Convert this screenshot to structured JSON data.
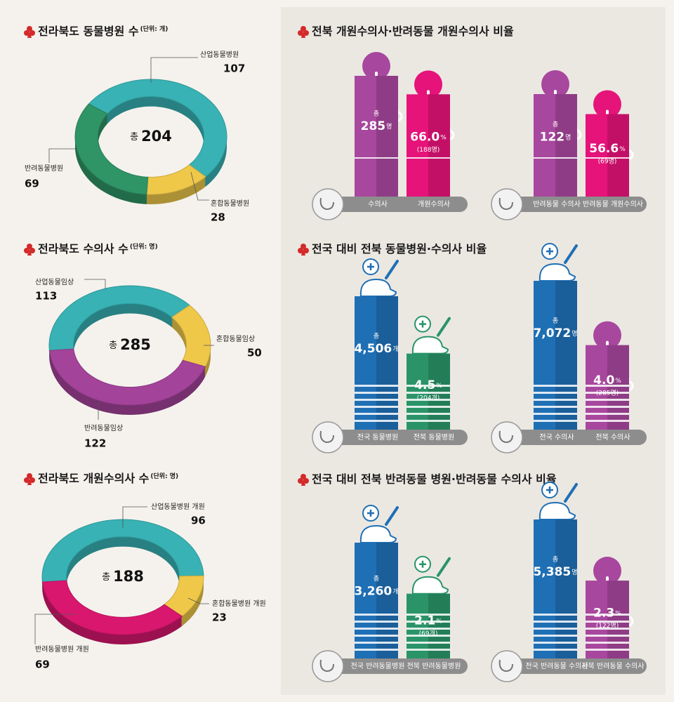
{
  "chart_data": [
    {
      "type": "pie",
      "title": "전라북도 동물병원 수",
      "unit": "(단위: 개)",
      "total_prefix": "총",
      "total": 204,
      "categories": [
        "산업동물병원",
        "혼합동물병원",
        "반려동물병원"
      ],
      "values": [
        107,
        28,
        69
      ],
      "colors": [
        "#38b2b4",
        "#efc84a",
        "#2f9466"
      ]
    },
    {
      "type": "pie",
      "title": "전라북도 수의사 수",
      "unit": "(단위: 명)",
      "total_prefix": "총",
      "total": 285,
      "categories": [
        "산업동물임상",
        "혼합동물임상",
        "반려동물임상"
      ],
      "values": [
        113,
        50,
        122
      ],
      "colors": [
        "#38b2b4",
        "#efc84a",
        "#a4439a"
      ]
    },
    {
      "type": "pie",
      "title": "전라북도 개원수의사 수",
      "unit": "(단위: 명)",
      "total_prefix": "총",
      "total": 188,
      "categories": [
        "산업동물병원 개원",
        "혼합동물병원 개원",
        "반려동물병원 개원"
      ],
      "values": [
        96,
        23,
        69
      ],
      "colors": [
        "#38b2b4",
        "#efc84a",
        "#d9176f"
      ]
    },
    {
      "type": "bar",
      "title": "전북 개원수의사·반려동물 개원수의사 비율",
      "groups": [
        {
          "bars": [
            {
              "label": "수의사",
              "prefix": "총",
              "value": 285,
              "unit": "명",
              "color": "#a8479e"
            },
            {
              "label": "개원수의사",
              "value": 66.0,
              "value_label": "66.0",
              "unit": "%",
              "count": 188,
              "count_label": "(188명)",
              "color": "#e5137a"
            }
          ]
        },
        {
          "bars": [
            {
              "label": "반려동물 수의사",
              "prefix": "총",
              "value": 122,
              "unit": "명",
              "color": "#a8479e"
            },
            {
              "label": "반려동물 개원수의사",
              "value": 56.6,
              "unit": "%",
              "count": 69,
              "count_label": "(69명)",
              "color": "#e5137a"
            }
          ]
        }
      ]
    },
    {
      "type": "bar",
      "title": "전국 대비 전북 동물병원·수의사 비율",
      "groups": [
        {
          "bars": [
            {
              "label": "전국 동물병원",
              "prefix": "총",
              "value": 4506,
              "value_label": "4,506",
              "unit": "개",
              "color": "#1f6fb5"
            },
            {
              "label": "전북 동물병원",
              "value": 4.5,
              "unit": "%",
              "count": 204,
              "count_label": "(204개)",
              "color": "#2a9468"
            }
          ]
        },
        {
          "bars": [
            {
              "label": "전국 수의사",
              "prefix": "총",
              "value": 7072,
              "value_label": "7,072",
              "unit": "명",
              "color": "#1f6fb5"
            },
            {
              "label": "전북 수의사",
              "value": 4.0,
              "value_label": "4.0",
              "unit": "%",
              "count": 285,
              "count_label": "(285명)",
              "color": "#a8479e"
            }
          ]
        }
      ]
    },
    {
      "type": "bar",
      "title": "전국 대비 전북 반려동물 병원·반려동물 수의사 비율",
      "groups": [
        {
          "bars": [
            {
              "label": "전국 반려동물병원",
              "prefix": "총",
              "value": 3260,
              "value_label": "3,260",
              "unit": "개",
              "color": "#1f6fb5"
            },
            {
              "label": "전북 반려동물병원",
              "value": 2.1,
              "unit": "%",
              "count": 69,
              "count_label": "(69개)",
              "color": "#2a9468"
            }
          ]
        },
        {
          "bars": [
            {
              "label": "전국 반려동물 수의사",
              "prefix": "총",
              "value": 5385,
              "value_label": "5,385",
              "unit": "명",
              "color": "#1f6fb5"
            },
            {
              "label": "전북 반려동물 수의사",
              "value": 2.3,
              "unit": "%",
              "count": 122,
              "count_label": "(122명)",
              "color": "#a8479e"
            }
          ]
        }
      ]
    }
  ]
}
